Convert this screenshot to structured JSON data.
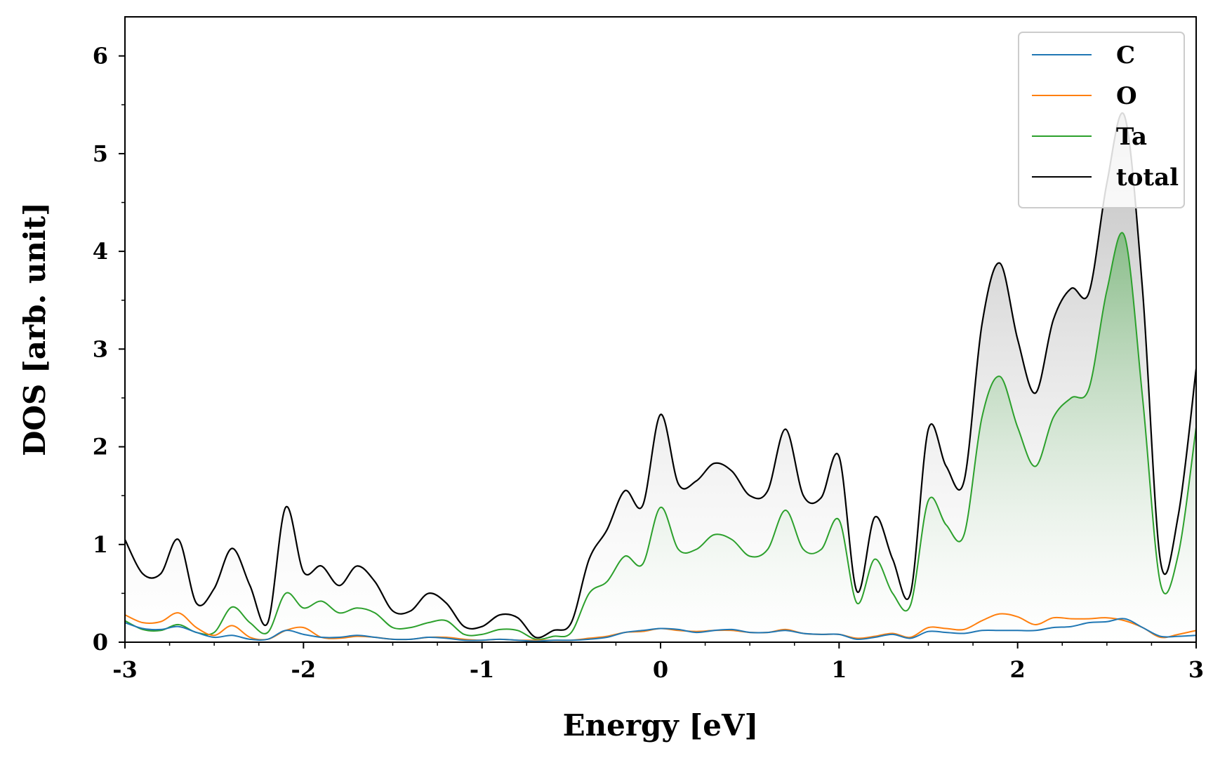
{
  "chart_data": {
    "type": "line",
    "title": "",
    "xlabel": "Energy [eV]",
    "ylabel": "DOS [arb. unit]",
    "xlim": [
      -3,
      3
    ],
    "ylim": [
      0,
      6.4
    ],
    "xticks": [
      -3,
      -2,
      -1,
      0,
      1,
      2,
      3
    ],
    "xtick_labels": [
      "-3",
      "-2",
      "-1",
      "0",
      "1",
      "2",
      "3"
    ],
    "yticks": [
      0,
      1,
      2,
      3,
      4,
      5,
      6
    ],
    "ytick_labels": [
      "0",
      "1",
      "2",
      "3",
      "4",
      "5",
      "6"
    ],
    "grid": false,
    "legend_position": "top-right",
    "x": [
      -3.0,
      -2.9,
      -2.8,
      -2.7,
      -2.6,
      -2.5,
      -2.4,
      -2.3,
      -2.2,
      -2.1,
      -2.0,
      -1.9,
      -1.8,
      -1.7,
      -1.6,
      -1.5,
      -1.4,
      -1.3,
      -1.2,
      -1.1,
      -1.0,
      -0.9,
      -0.8,
      -0.7,
      -0.6,
      -0.5,
      -0.4,
      -0.3,
      -0.2,
      -0.1,
      0.0,
      0.1,
      0.2,
      0.3,
      0.4,
      0.5,
      0.6,
      0.7,
      0.8,
      0.9,
      1.0,
      1.1,
      1.2,
      1.3,
      1.4,
      1.5,
      1.6,
      1.7,
      1.8,
      1.9,
      2.0,
      2.1,
      2.2,
      2.3,
      2.4,
      2.5,
      2.6,
      2.7,
      2.8,
      2.9,
      3.0
    ],
    "series": [
      {
        "name": "C",
        "color": "#1f77b4",
        "values": [
          0.2,
          0.14,
          0.13,
          0.16,
          0.1,
          0.05,
          0.07,
          0.03,
          0.03,
          0.12,
          0.08,
          0.05,
          0.05,
          0.07,
          0.05,
          0.03,
          0.03,
          0.05,
          0.04,
          0.02,
          0.02,
          0.03,
          0.02,
          0.01,
          0.02,
          0.02,
          0.03,
          0.05,
          0.1,
          0.12,
          0.14,
          0.13,
          0.1,
          0.12,
          0.13,
          0.1,
          0.1,
          0.12,
          0.09,
          0.08,
          0.08,
          0.03,
          0.05,
          0.08,
          0.04,
          0.11,
          0.1,
          0.09,
          0.12,
          0.12,
          0.12,
          0.12,
          0.15,
          0.16,
          0.2,
          0.21,
          0.24,
          0.15,
          0.06,
          0.06,
          0.07
        ]
      },
      {
        "name": "O",
        "color": "#ff7f0e",
        "values": [
          0.28,
          0.2,
          0.21,
          0.3,
          0.15,
          0.07,
          0.17,
          0.05,
          0.03,
          0.12,
          0.15,
          0.05,
          0.04,
          0.06,
          0.05,
          0.03,
          0.03,
          0.05,
          0.05,
          0.03,
          0.02,
          0.03,
          0.02,
          0.02,
          0.02,
          0.02,
          0.04,
          0.06,
          0.1,
          0.11,
          0.14,
          0.12,
          0.11,
          0.12,
          0.12,
          0.1,
          0.1,
          0.13,
          0.09,
          0.08,
          0.08,
          0.04,
          0.06,
          0.09,
          0.05,
          0.15,
          0.14,
          0.13,
          0.22,
          0.29,
          0.26,
          0.18,
          0.25,
          0.24,
          0.24,
          0.25,
          0.22,
          0.15,
          0.05,
          0.08,
          0.12
        ]
      },
      {
        "name": "Ta",
        "color": "#2ca02c",
        "values": [
          0.22,
          0.13,
          0.12,
          0.18,
          0.1,
          0.1,
          0.36,
          0.2,
          0.1,
          0.5,
          0.35,
          0.42,
          0.3,
          0.35,
          0.3,
          0.15,
          0.15,
          0.2,
          0.22,
          0.08,
          0.08,
          0.13,
          0.12,
          0.03,
          0.06,
          0.1,
          0.5,
          0.62,
          0.88,
          0.8,
          1.38,
          0.95,
          0.95,
          1.1,
          1.05,
          0.88,
          0.95,
          1.35,
          0.95,
          0.95,
          1.25,
          0.4,
          0.85,
          0.5,
          0.38,
          1.45,
          1.2,
          1.1,
          2.3,
          2.72,
          2.2,
          1.8,
          2.3,
          2.5,
          2.6,
          3.6,
          4.15,
          2.5,
          0.6,
          0.9,
          2.2
        ]
      },
      {
        "name": "total",
        "color": "#000000",
        "values": [
          1.05,
          0.7,
          0.7,
          1.05,
          0.4,
          0.55,
          0.96,
          0.58,
          0.2,
          1.38,
          0.72,
          0.78,
          0.58,
          0.78,
          0.62,
          0.32,
          0.32,
          0.5,
          0.4,
          0.16,
          0.16,
          0.28,
          0.25,
          0.05,
          0.12,
          0.2,
          0.85,
          1.15,
          1.55,
          1.4,
          2.33,
          1.62,
          1.65,
          1.83,
          1.75,
          1.5,
          1.55,
          2.18,
          1.5,
          1.48,
          1.9,
          0.52,
          1.28,
          0.85,
          0.5,
          2.18,
          1.8,
          1.65,
          3.25,
          3.88,
          3.1,
          2.55,
          3.3,
          3.62,
          3.58,
          4.7,
          5.38,
          3.6,
          0.83,
          1.3,
          2.8
        ]
      }
    ]
  }
}
